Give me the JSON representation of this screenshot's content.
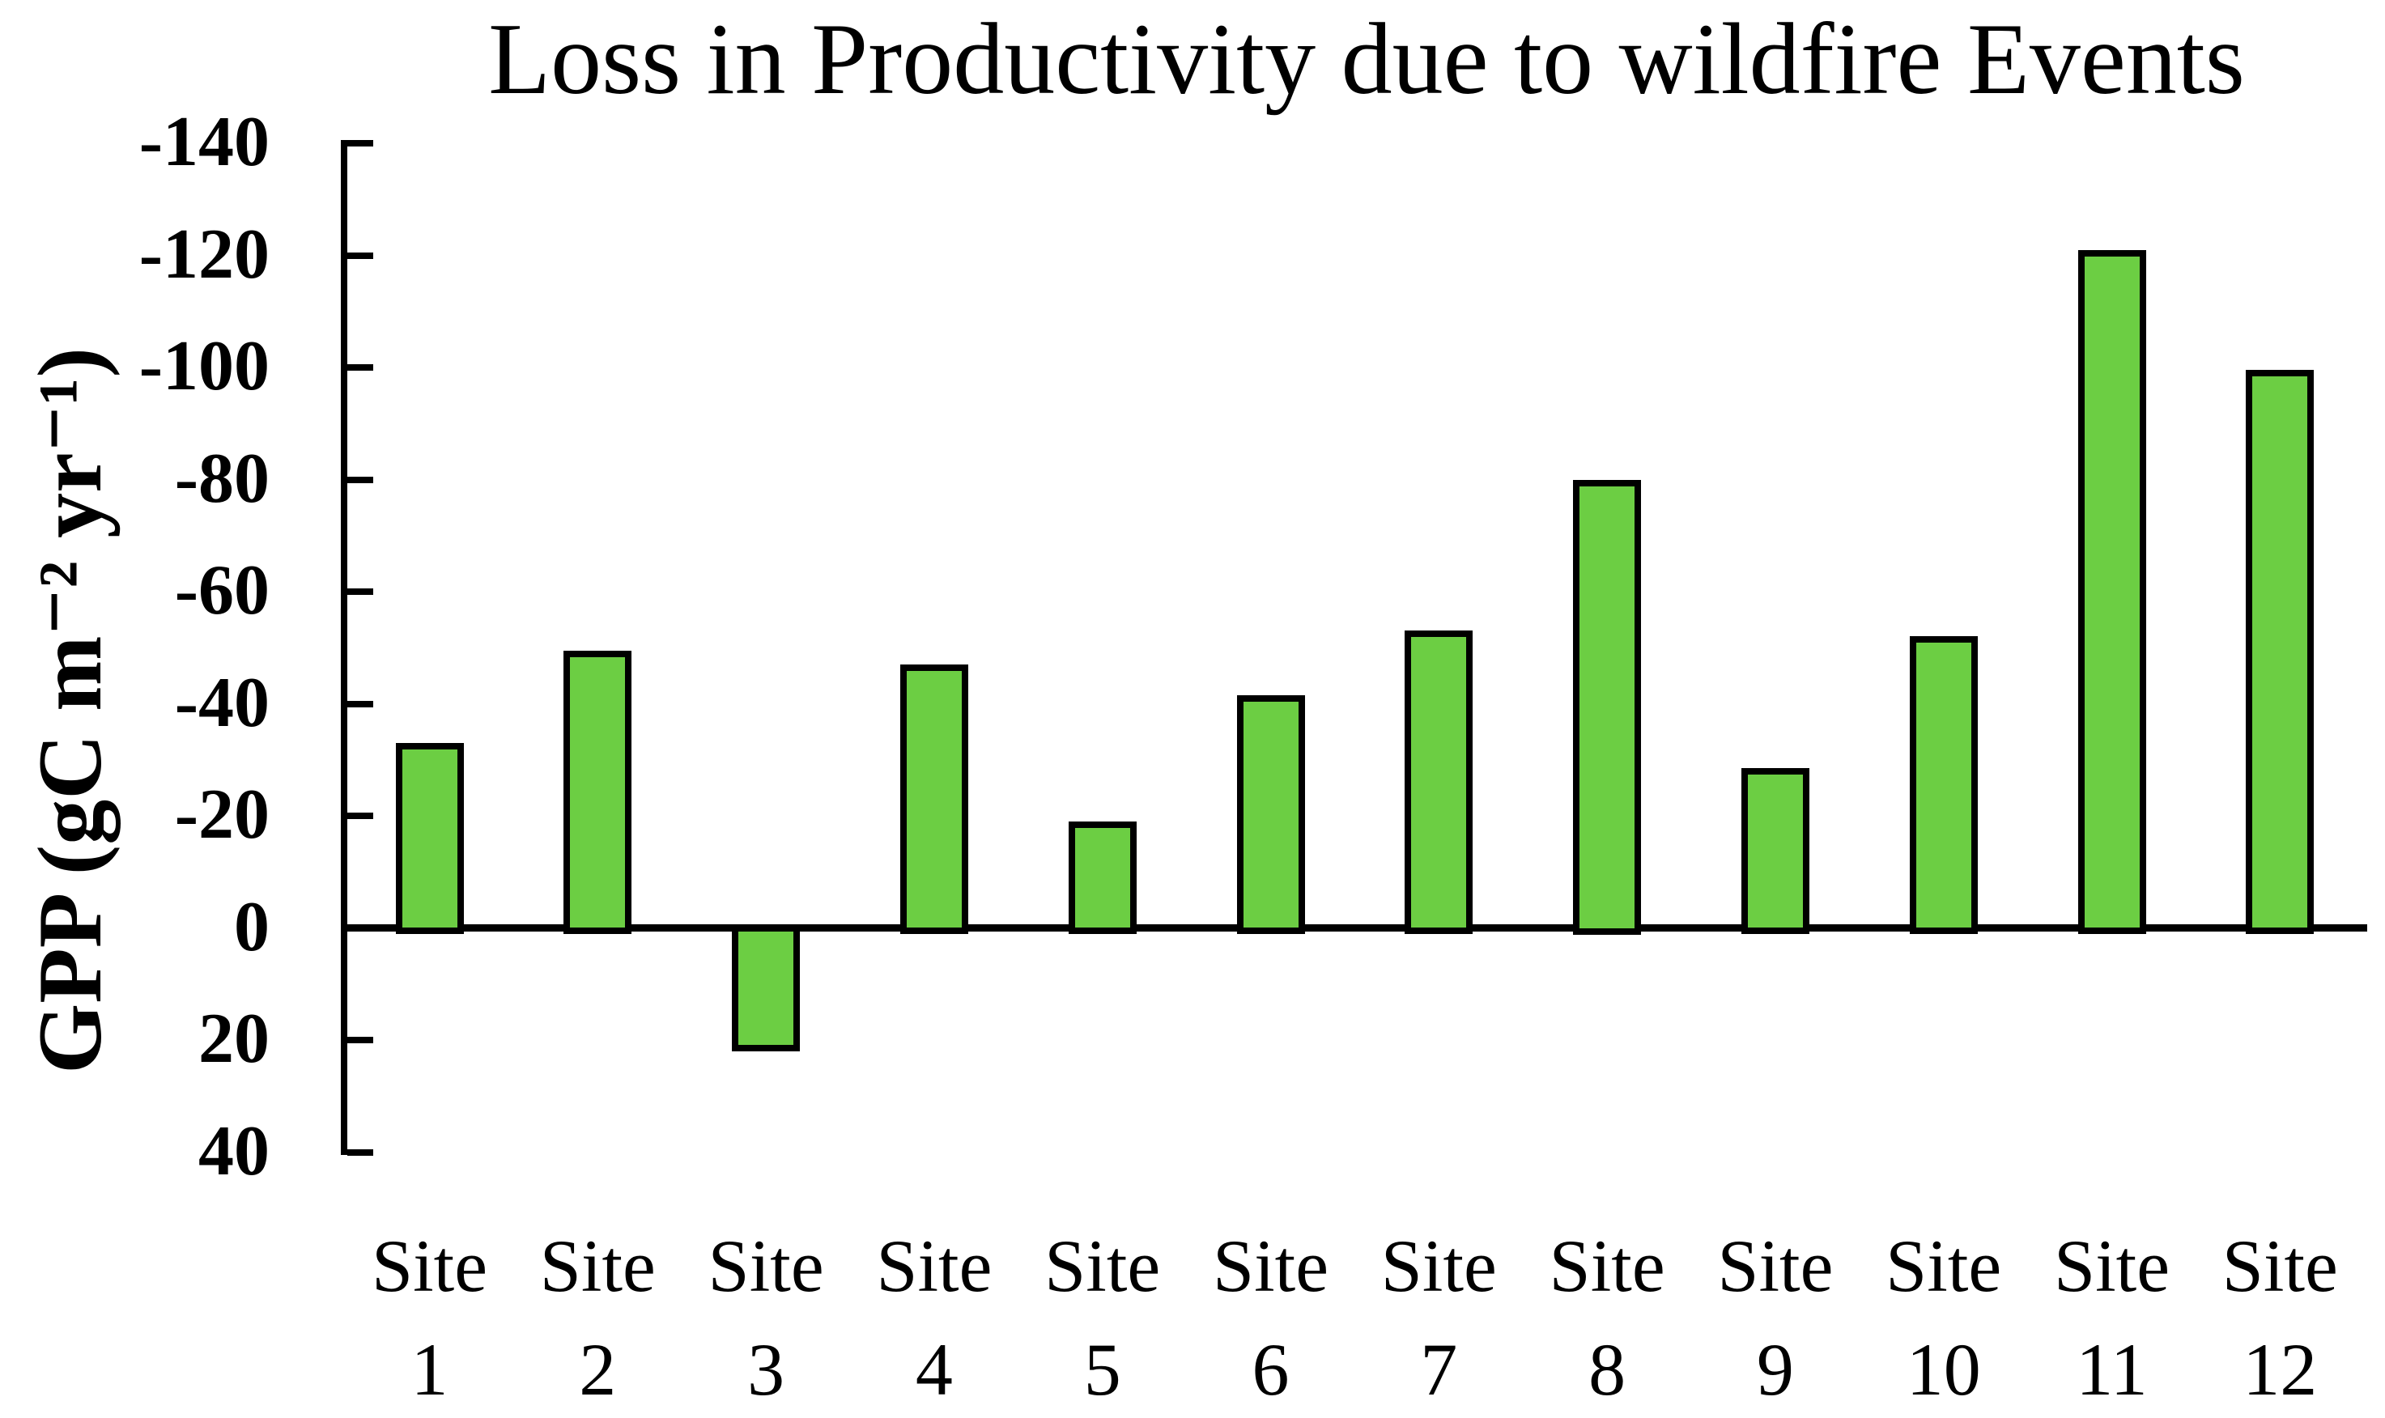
{
  "title": "Loss in Productivity due to wildfire Events",
  "y_axis": {
    "label": "GPP (gC m⁻² yr⁻¹)",
    "ticks": [
      -140,
      -120,
      -100,
      -80,
      -60,
      -40,
      -20,
      0,
      20,
      40
    ]
  },
  "chart_data": {
    "type": "bar",
    "title": "Loss in Productivity due to wildfire Events",
    "categories": [
      "Site 1",
      "Site 2",
      "Site 3",
      "Site 4",
      "Site 5",
      "Site 6",
      "Site 7",
      "Site 8",
      "Site 9",
      "Site 10",
      "Site 11",
      "Site 12"
    ],
    "values": [
      -33,
      -49.5,
      21.5,
      -47,
      -19,
      -41.5,
      -53,
      -80,
      -28.5,
      -52,
      -121,
      -99.5
    ],
    "xlabel": "",
    "ylabel": "GPP (gC m⁻² yr⁻¹)",
    "ylim": [
      -140,
      40
    ],
    "y_inverted": true,
    "ytick_step": 20,
    "grid": false,
    "legend": "none",
    "bar_color": "#6cce43",
    "bar_border_color": "#000000",
    "axis_color": "#000000",
    "background_color": "#ffffff"
  }
}
